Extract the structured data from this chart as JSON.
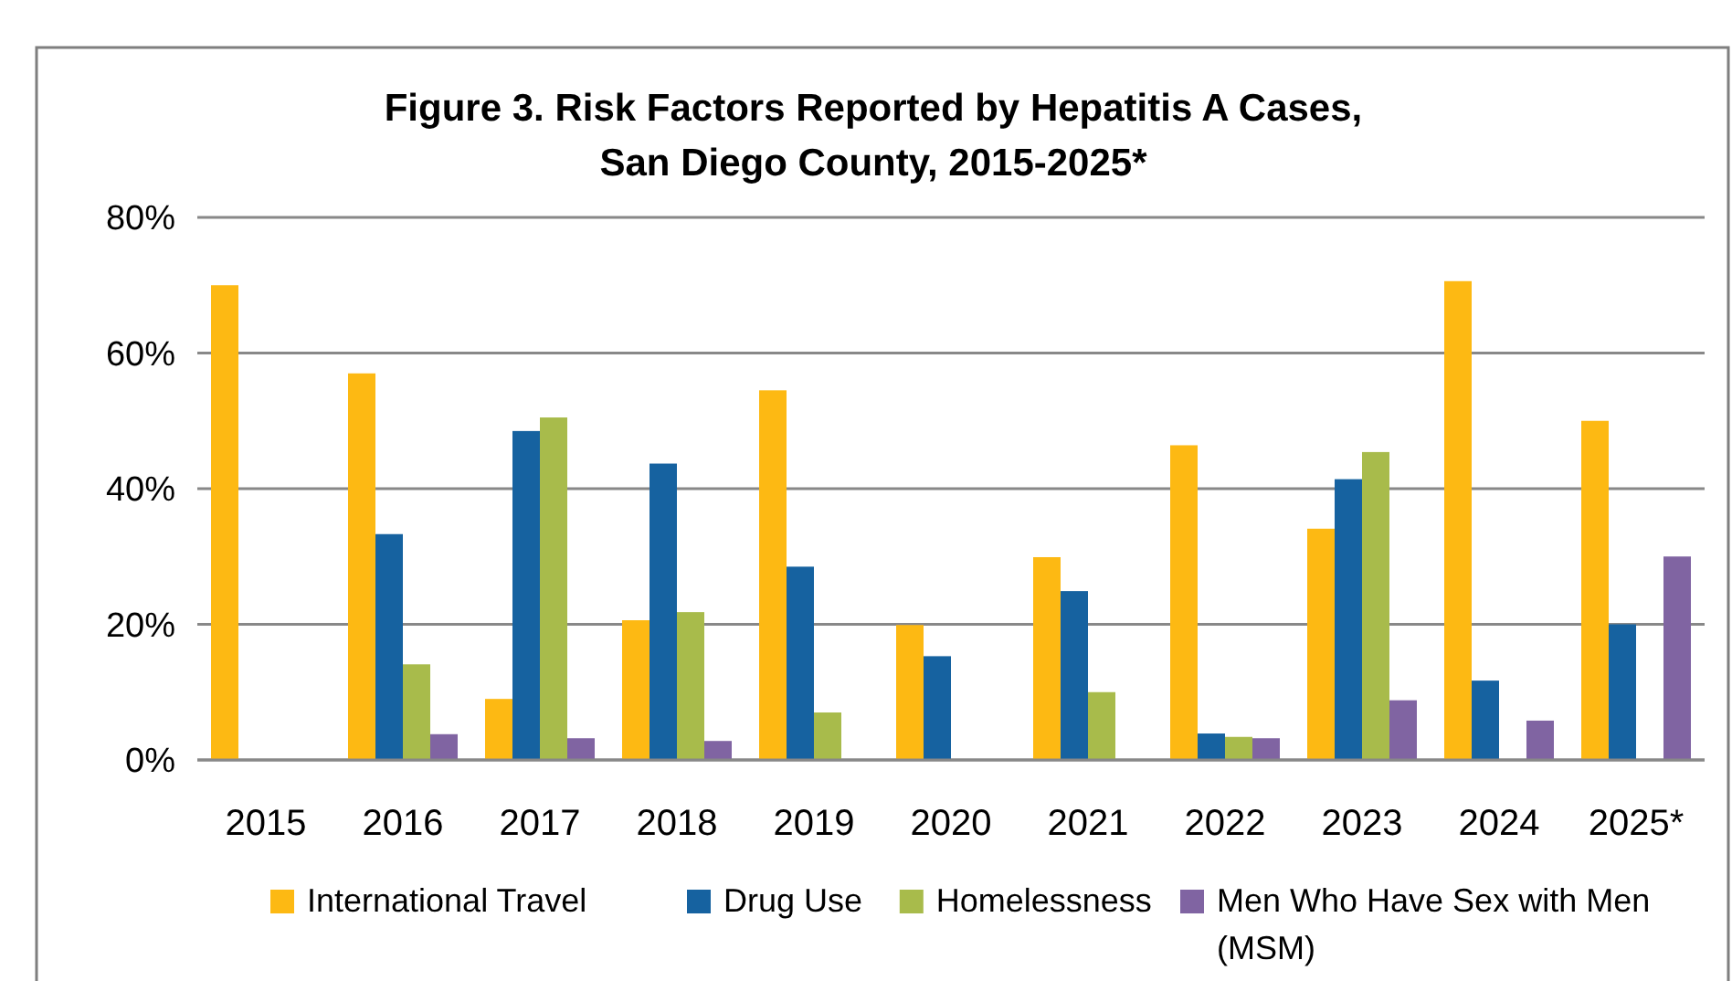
{
  "chart_data": {
    "type": "bar",
    "title": "Figure 3. Risk Factors Reported by Hepatitis A Cases,\nSan Diego County, 2015-2025*",
    "categories": [
      "2015",
      "2016",
      "2017",
      "2018",
      "2019",
      "2020",
      "2021",
      "2022",
      "2023",
      "2024",
      "2025*"
    ],
    "series": [
      {
        "name": "International Travel",
        "color": "#fdb913",
        "values": [
          70,
          57,
          9,
          20.6,
          54.5,
          19.9,
          29.9,
          46.4,
          34.1,
          70.6,
          50
        ]
      },
      {
        "name": "Drug Use",
        "color": "#1662a0",
        "values": [
          0,
          33.3,
          48.5,
          43.7,
          28.5,
          15.3,
          24.9,
          3.9,
          41.4,
          11.7,
          20
        ]
      },
      {
        "name": "Homelessness",
        "color": "#a8bb4b",
        "values": [
          0,
          14.1,
          50.5,
          21.8,
          7,
          0,
          10,
          3.4,
          45.4,
          0,
          0
        ]
      },
      {
        "name": "Men Who Have Sex with Men (MSM)",
        "color": "#8064a2",
        "values": [
          0,
          3.8,
          3.2,
          2.8,
          0,
          0,
          0,
          3.2,
          8.8,
          5.8,
          30
        ]
      }
    ],
    "ylim": [
      0,
      80
    ],
    "yticks": [
      {
        "value": 0,
        "label": "0%"
      },
      {
        "value": 20,
        "label": "20%"
      },
      {
        "value": 40,
        "label": "40%"
      },
      {
        "value": 60,
        "label": "60%"
      },
      {
        "value": 80,
        "label": "80%"
      }
    ],
    "grid": "y",
    "legend": "bottom"
  }
}
